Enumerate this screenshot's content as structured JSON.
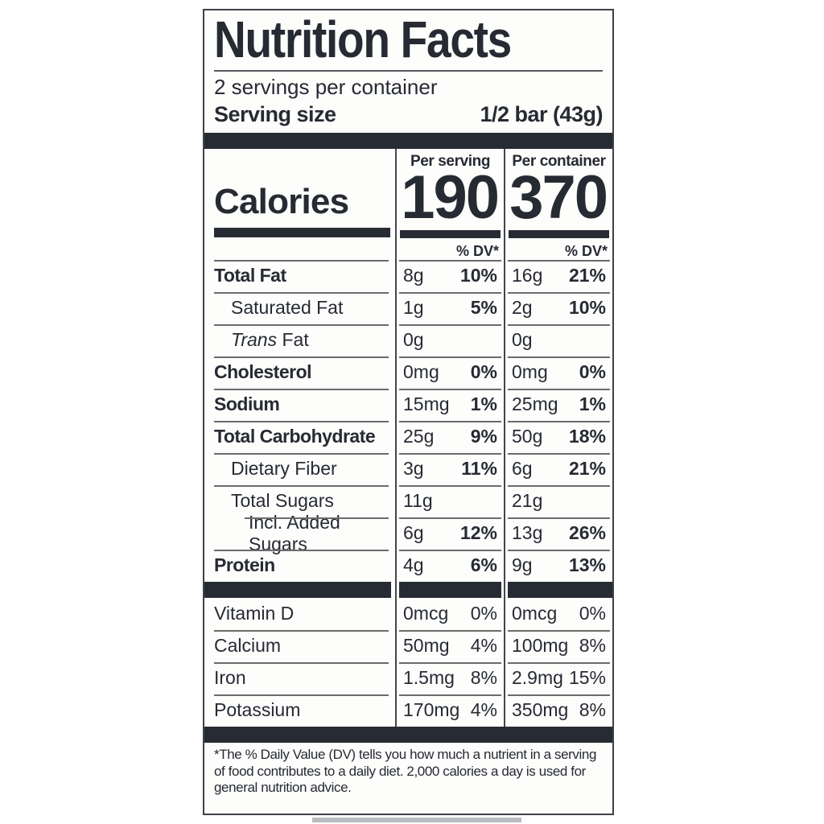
{
  "label": {
    "title": "Nutrition Facts",
    "servings_line": "2 servings per container",
    "serving_size": {
      "label": "Serving size",
      "value": "1/2 bar (43g)"
    },
    "columns": {
      "serving_header": "Per serving",
      "container_header": "Per container"
    },
    "calories": {
      "label": "Calories",
      "per_serving": "190",
      "per_container": "370"
    },
    "dv_header": "% DV*",
    "nutrients": [
      {
        "label": "Total Fat",
        "bold": true,
        "indent": 0,
        "s_amt": "8g",
        "s_dv": "10%",
        "c_amt": "16g",
        "c_dv": "21%",
        "dv_bold": true
      },
      {
        "label": "Saturated Fat",
        "bold": false,
        "indent": 1,
        "s_amt": "1g",
        "s_dv": "5%",
        "c_amt": "2g",
        "c_dv": "10%",
        "dv_bold": true
      },
      {
        "italic_prefix": "Trans",
        "label_rest": " Fat",
        "bold": false,
        "indent": 1,
        "s_amt": "0g",
        "s_dv": "",
        "c_amt": "0g",
        "c_dv": "",
        "dv_bold": true
      },
      {
        "label": "Cholesterol",
        "bold": true,
        "indent": 0,
        "s_amt": "0mg",
        "s_dv": "0%",
        "c_amt": "0mg",
        "c_dv": "0%",
        "dv_bold": true
      },
      {
        "label": "Sodium",
        "bold": true,
        "indent": 0,
        "s_amt": "15mg",
        "s_dv": "1%",
        "c_amt": "25mg",
        "c_dv": "1%",
        "dv_bold": true
      },
      {
        "label": "Total Carbohydrate",
        "bold": true,
        "indent": 0,
        "s_amt": "25g",
        "s_dv": "9%",
        "c_amt": "50g",
        "c_dv": "18%",
        "dv_bold": true
      },
      {
        "label": "Dietary Fiber",
        "bold": false,
        "indent": 1,
        "s_amt": "3g",
        "s_dv": "11%",
        "c_amt": "6g",
        "c_dv": "21%",
        "dv_bold": true
      },
      {
        "label": "Total Sugars",
        "bold": false,
        "indent": 1,
        "s_amt": "11g",
        "s_dv": "",
        "c_amt": "21g",
        "c_dv": "",
        "dv_bold": true
      },
      {
        "label": "Incl. Added Sugars",
        "bold": false,
        "indent": 2,
        "s_amt": "6g",
        "s_dv": "12%",
        "c_amt": "13g",
        "c_dv": "26%",
        "dv_bold": true
      },
      {
        "label": "Protein",
        "bold": true,
        "indent": 0,
        "s_amt": "4g",
        "s_dv": "6%",
        "c_amt": "9g",
        "c_dv": "13%",
        "dv_bold": true
      }
    ],
    "vitamins": [
      {
        "label": "Vitamin D",
        "bold": false,
        "indent": 0,
        "s_amt": "0mcg",
        "s_dv": "0%",
        "c_amt": "0mcg",
        "c_dv": "0%",
        "dv_bold": false
      },
      {
        "label": "Calcium",
        "bold": false,
        "indent": 0,
        "s_amt": "50mg",
        "s_dv": "4%",
        "c_amt": "100mg",
        "c_dv": "8%",
        "dv_bold": false
      },
      {
        "label": "Iron",
        "bold": false,
        "indent": 0,
        "s_amt": "1.5mg",
        "s_dv": "8%",
        "c_amt": "2.9mg",
        "c_dv": "15%",
        "dv_bold": false
      },
      {
        "label": "Potassium",
        "bold": false,
        "indent": 0,
        "s_amt": "170mg",
        "s_dv": "4%",
        "c_amt": "350mg",
        "c_dv": "8%",
        "dv_bold": false
      }
    ],
    "footnote": "*The % Daily Value (DV) tells you how much a nutrient in a serving of food contributes to a daily diet. 2,000 calories a day is used for general nutrition advice.",
    "colors": {
      "ink": "#262a32",
      "thick_bar": "#272b33",
      "hairline": "#6b6b6b",
      "divider": "#43464d",
      "border": "#3e4147",
      "background": "#fdfdfc"
    }
  }
}
